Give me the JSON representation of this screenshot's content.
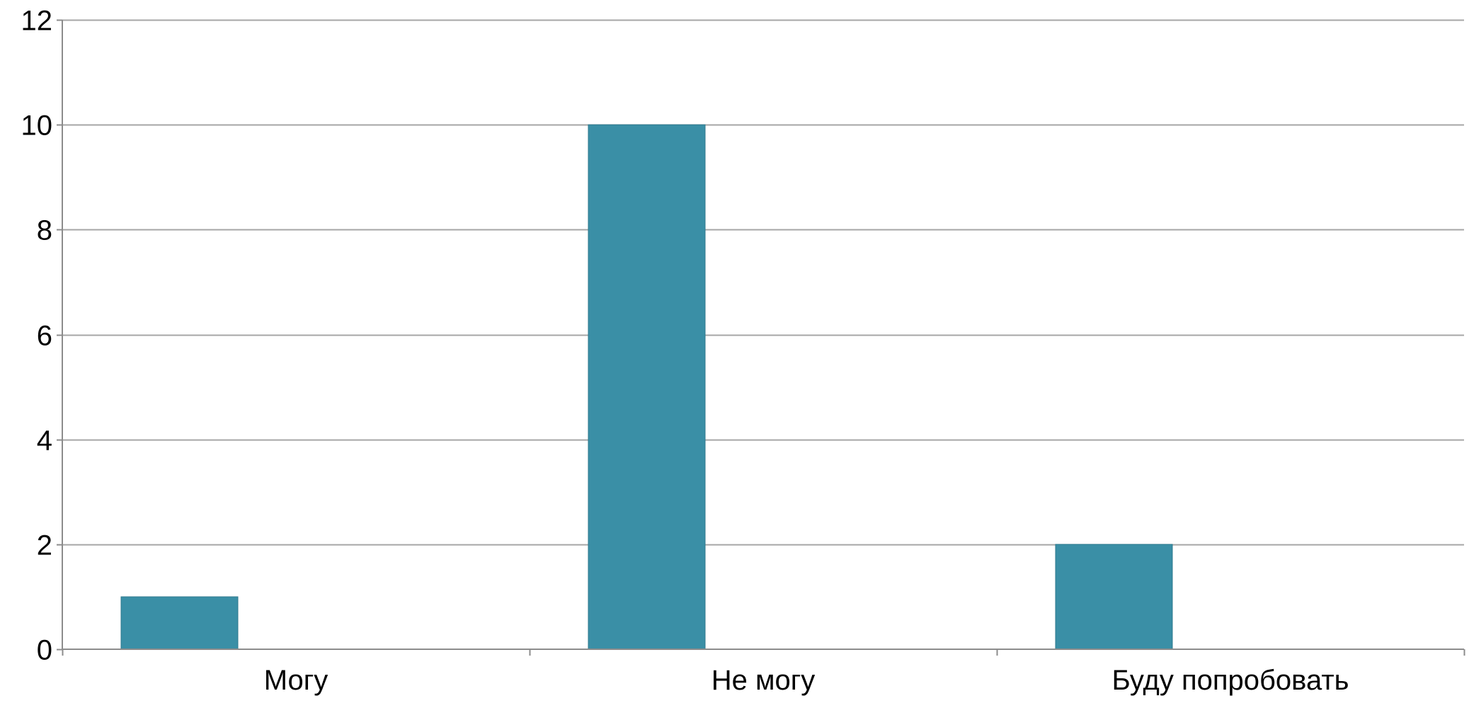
{
  "chart_data": {
    "type": "bar",
    "categories": [
      "Могу",
      "Не могу",
      "Буду попробовать"
    ],
    "values": [
      1,
      10,
      2
    ],
    "title": "",
    "xlabel": "",
    "ylabel": "",
    "ylim": [
      0,
      12
    ],
    "yticks": [
      "0",
      "2",
      "4",
      "6",
      "8",
      "10",
      "12"
    ],
    "grid": true,
    "legend": "none",
    "colors": {
      "bar": "#3a8fa6",
      "bar_stroke": "#2f7a8e",
      "grid": "#a6a6a6",
      "axis": "#8c8c8c",
      "text": "#000000"
    }
  }
}
